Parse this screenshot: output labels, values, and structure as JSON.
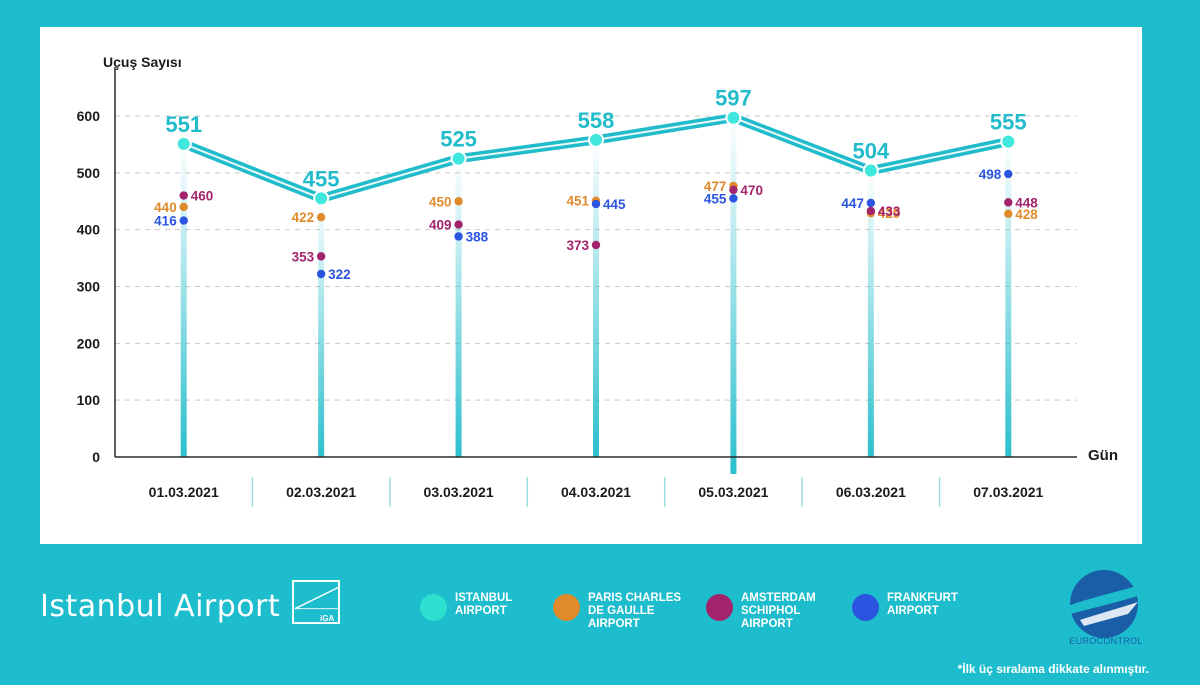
{
  "chart_data": {
    "type": "line",
    "ylabel": "Uçuş Sayısı",
    "xlabel": "Gün",
    "ylim": [
      0,
      600
    ],
    "yticks": [
      "0",
      "100",
      "200",
      "300",
      "400",
      "500",
      "600"
    ],
    "grid": true,
    "categories": [
      "01.03.2021",
      "02.03.2021",
      "03.03.2021",
      "04.03.2021",
      "05.03.2021",
      "06.03.2021",
      "07.03.2021"
    ],
    "series": [
      {
        "name": "ISTANBUL AIRPORT",
        "color": "#21bccb",
        "values": [
          551,
          455,
          525,
          558,
          597,
          504,
          555
        ]
      },
      {
        "name": "PARIS CHARLES DE GAULLE AIRPORT",
        "color": "#e08a2c",
        "values": [
          440,
          422,
          450,
          451,
          477,
          429,
          428
        ]
      },
      {
        "name": "AMSTERDAM SCHIPHOL AIRPORT",
        "color": "#a2246c",
        "values": [
          460,
          353,
          409,
          373,
          470,
          433,
          448
        ]
      },
      {
        "name": "FRANKFURT AIRPORT",
        "color": "#2b55e0",
        "values": [
          416,
          322,
          388,
          445,
          455,
          447,
          498
        ]
      }
    ]
  },
  "brand": {
    "name": "Istanbul Airport",
    "logo_text": "iGA"
  },
  "legend": [
    {
      "label": "ISTANBUL\nAIRPORT",
      "color": "#2de0d0"
    },
    {
      "label": "PARIS CHARLES\nDE GAULLE\nAIRPORT",
      "color": "#e08a2c"
    },
    {
      "label": "AMSTERDAM\nSCHIPHOL\nAIRPORT",
      "color": "#a2246c"
    },
    {
      "label": "FRANKFURT\nAIRPORT",
      "color": "#2b55e0"
    }
  ],
  "eurocontrol": {
    "text": "EUROCONTROL",
    "color": "#1a5ea8"
  },
  "footnote": "*İlk üç sıralama dikkate alınmıştır."
}
